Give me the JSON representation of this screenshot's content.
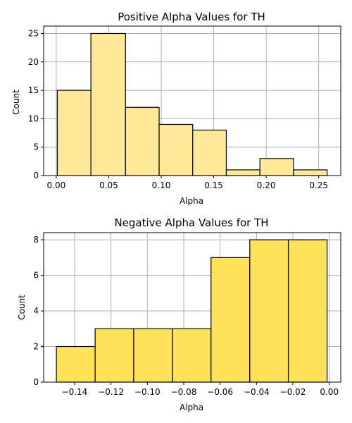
{
  "chart_data": [
    {
      "type": "bar",
      "title": "Positive Alpha Values for TH",
      "xlabel": "Alpha",
      "ylabel": "Count",
      "bin_edges": [
        0.001,
        0.033,
        0.066,
        0.098,
        0.13,
        0.162,
        0.194,
        0.226,
        0.258
      ],
      "values": [
        15,
        25,
        12,
        9,
        8,
        1,
        3,
        1
      ],
      "xlim": [
        -0.012,
        0.271
      ],
      "ylim": [
        0,
        26.3
      ],
      "xticks": [
        0.0,
        0.05,
        0.1,
        0.15,
        0.2,
        0.25
      ],
      "xtick_labels": [
        "0.00",
        "0.05",
        "0.10",
        "0.15",
        "0.20",
        "0.25"
      ],
      "yticks": [
        0,
        5,
        10,
        15,
        20,
        25
      ],
      "ytick_labels": [
        "0",
        "5",
        "10",
        "15",
        "20",
        "25"
      ],
      "grid": true,
      "bar_color": "#FFE999",
      "edge_color": "#000000"
    },
    {
      "type": "bar",
      "title": "Negative Alpha Values for TH",
      "xlabel": "Alpha",
      "ylabel": "Count",
      "bin_edges": [
        -0.15,
        -0.1287,
        -0.1075,
        -0.0862,
        -0.065,
        -0.0437,
        -0.0225,
        -0.0012
      ],
      "values": [
        2,
        3,
        3,
        3,
        7,
        8,
        8
      ],
      "xlim": [
        -0.157,
        0.0063
      ],
      "ylim": [
        0,
        8.4
      ],
      "xticks": [
        -0.14,
        -0.12,
        -0.1,
        -0.08,
        -0.06,
        -0.04,
        -0.02,
        0.0
      ],
      "xtick_labels": [
        "−0.14",
        "−0.12",
        "−0.10",
        "−0.08",
        "−0.06",
        "−0.04",
        "−0.02",
        "0.00"
      ],
      "yticks": [
        0,
        2,
        4,
        6,
        8
      ],
      "ytick_labels": [
        "0",
        "2",
        "4",
        "6",
        "8"
      ],
      "grid": true,
      "bar_color": "#FFE15A",
      "edge_color": "#000000"
    }
  ]
}
